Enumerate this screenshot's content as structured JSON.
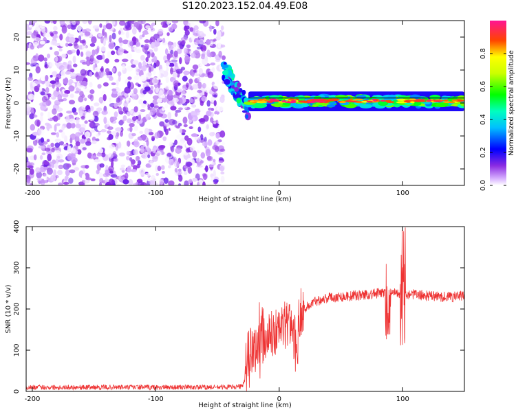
{
  "title": "S120.2023.152.04.49.E08",
  "chart_data": [
    {
      "type": "heatmap",
      "xlabel": "Height of straight line (km)",
      "ylabel": "Frequency (Hz)",
      "xlim": [
        -205,
        150
      ],
      "ylim": [
        -25,
        25
      ],
      "x_ticks": [
        -200,
        -100,
        0,
        100
      ],
      "y_ticks": [
        -20,
        -10,
        0,
        10,
        20
      ],
      "colorbar": {
        "label": "Normalized spectral amplitude",
        "range": [
          0,
          1
        ],
        "ticks": [
          0.0,
          0.2,
          0.4,
          0.6,
          0.8
        ],
        "colormap": [
          "#ffffff",
          "#8a2be2",
          "#0000ff",
          "#00ffff",
          "#00ff00",
          "#ffff00",
          "#ff0000",
          "#ff1493"
        ]
      },
      "regions": [
        {
          "x_range": [
            -205,
            -45
          ],
          "y_range": [
            -25,
            25
          ],
          "amplitude_range": [
            0.0,
            0.15
          ],
          "pattern": "broadband noise"
        },
        {
          "x_range": [
            -45,
            -25
          ],
          "y_range": [
            -5,
            10
          ],
          "amplitude_range": [
            0.1,
            0.5
          ],
          "pattern": "descending signal onset"
        },
        {
          "x_range": [
            -25,
            150
          ],
          "y_range": [
            -1,
            2
          ],
          "amplitude_range": [
            0.3,
            1.0
          ],
          "pattern": "narrow band near 1 Hz"
        }
      ],
      "reference_line_y": 1.5
    },
    {
      "type": "line",
      "xlabel": "Height of straight line (km)",
      "ylabel": "SNR (10 * v/v)",
      "xlim": [
        -205,
        150
      ],
      "ylim": [
        0,
        400
      ],
      "x_ticks": [
        -200,
        -100,
        0,
        100
      ],
      "y_ticks": [
        0,
        100,
        200,
        300,
        400
      ],
      "series": [
        {
          "color": "#ee3333",
          "x": [
            -205,
            -150,
            -100,
            -50,
            -30,
            -25,
            -20,
            -15,
            -10,
            -5,
            0,
            5,
            10,
            15,
            20,
            25,
            30,
            40,
            50,
            60,
            70,
            80,
            88,
            92,
            96,
            100,
            110,
            120,
            130,
            140,
            150
          ],
          "y": [
            10,
            10,
            10,
            10,
            12,
            60,
            100,
            110,
            130,
            140,
            150,
            160,
            170,
            185,
            200,
            210,
            220,
            228,
            230,
            232,
            235,
            238,
            240,
            245,
            240,
            238,
            235,
            232,
            230,
            230,
            232
          ]
        }
      ],
      "spikes": [
        {
          "x": -25,
          "y_min": 0,
          "y_max": 155
        },
        {
          "x": -15,
          "y_min": 30,
          "y_max": 225
        },
        {
          "x": 13,
          "y_min": 45,
          "y_max": 190
        },
        {
          "x": 88,
          "y_min": 115,
          "y_max": 310
        },
        {
          "x": 100,
          "y_min": 100,
          "y_max": 400
        }
      ]
    }
  ]
}
